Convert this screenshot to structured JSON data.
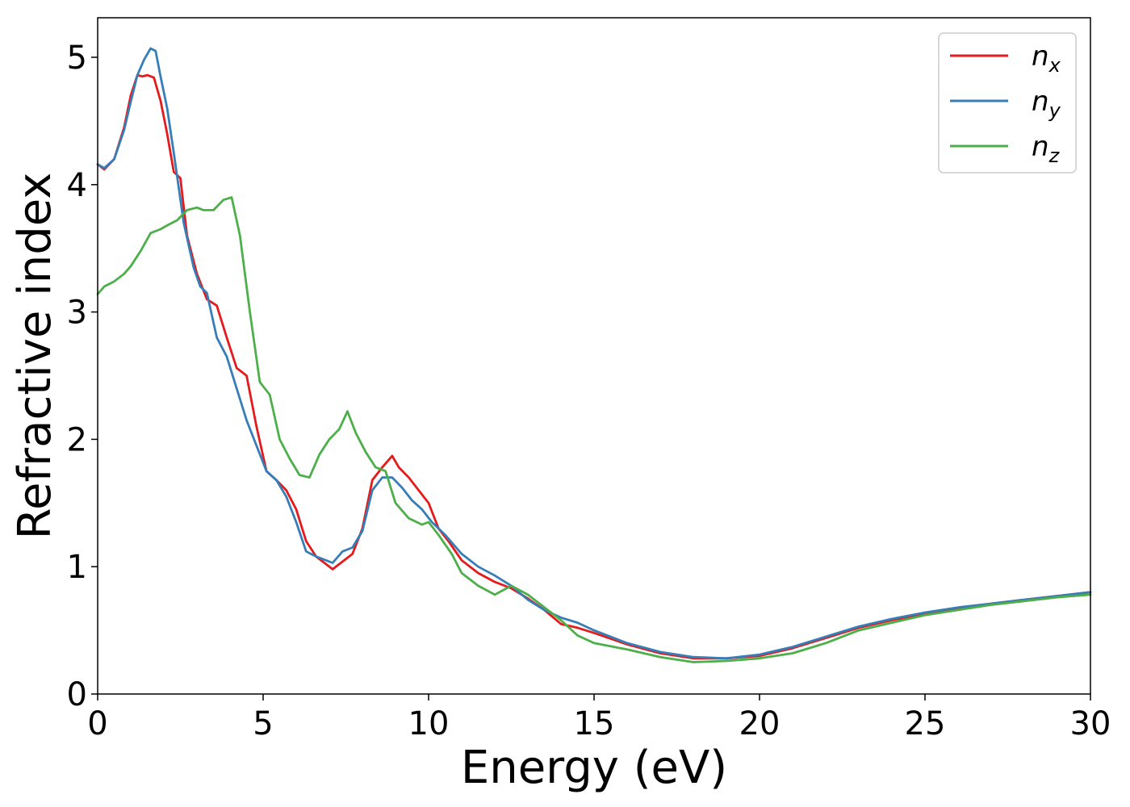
{
  "chart_data": {
    "type": "line",
    "title": "",
    "xlabel": "Energy (eV)",
    "ylabel": "Refractive index",
    "xlim": [
      0,
      30
    ],
    "ylim": [
      0,
      5.3
    ],
    "xticks": [
      0,
      5,
      10,
      15,
      20,
      25,
      30
    ],
    "yticks": [
      0,
      1,
      2,
      3,
      4,
      5
    ],
    "grid": false,
    "legend_position": "top-right",
    "series": [
      {
        "name": "n_x",
        "symbol": "n",
        "subscript": "x",
        "color": "#e41a1c",
        "x": [
          0,
          0.2,
          0.5,
          0.8,
          1.0,
          1.2,
          1.35,
          1.5,
          1.7,
          1.9,
          2.1,
          2.3,
          2.5,
          2.7,
          3.0,
          3.3,
          3.6,
          3.9,
          4.2,
          4.5,
          4.8,
          5.1,
          5.4,
          5.7,
          6.0,
          6.3,
          6.6,
          6.9,
          7.1,
          7.4,
          7.7,
          8.0,
          8.3,
          8.6,
          8.9,
          9.1,
          9.4,
          9.7,
          10.0,
          10.3,
          10.6,
          11.0,
          11.5,
          12.0,
          12.5,
          13.0,
          13.5,
          14.0,
          14.5,
          15.0,
          16.0,
          17.0,
          18.0,
          19.0,
          20.0,
          21.0,
          22.0,
          23.0,
          24.0,
          25.0,
          26.0,
          27.0,
          28.0,
          29.0,
          30.0
        ],
        "y": [
          4.16,
          4.12,
          4.2,
          4.45,
          4.7,
          4.86,
          4.85,
          4.86,
          4.84,
          4.66,
          4.4,
          4.1,
          4.05,
          3.6,
          3.3,
          3.1,
          3.05,
          2.8,
          2.56,
          2.5,
          2.1,
          1.75,
          1.68,
          1.6,
          1.45,
          1.2,
          1.08,
          1.02,
          0.98,
          1.04,
          1.1,
          1.3,
          1.68,
          1.78,
          1.87,
          1.78,
          1.7,
          1.6,
          1.5,
          1.3,
          1.2,
          1.05,
          0.95,
          0.88,
          0.83,
          0.75,
          0.66,
          0.55,
          0.52,
          0.48,
          0.39,
          0.32,
          0.28,
          0.28,
          0.3,
          0.36,
          0.44,
          0.52,
          0.58,
          0.63,
          0.67,
          0.71,
          0.74,
          0.77,
          0.8
        ]
      },
      {
        "name": "n_y",
        "symbol": "n",
        "subscript": "y",
        "color": "#377eb8",
        "x": [
          0,
          0.2,
          0.5,
          0.8,
          1.0,
          1.2,
          1.4,
          1.6,
          1.75,
          1.9,
          2.1,
          2.3,
          2.6,
          2.9,
          3.1,
          3.3,
          3.6,
          3.9,
          4.2,
          4.5,
          4.8,
          5.1,
          5.4,
          5.7,
          6.0,
          6.3,
          6.6,
          6.9,
          7.1,
          7.4,
          7.7,
          8.0,
          8.3,
          8.6,
          8.9,
          9.2,
          9.5,
          9.8,
          10.1,
          10.5,
          11.0,
          11.5,
          12.0,
          12.5,
          13.0,
          13.5,
          14.0,
          14.5,
          15.0,
          16.0,
          17.0,
          18.0,
          19.0,
          20.0,
          21.0,
          22.0,
          23.0,
          24.0,
          25.0,
          26.0,
          27.0,
          28.0,
          29.0,
          30.0
        ],
        "y": [
          4.16,
          4.13,
          4.2,
          4.43,
          4.65,
          4.86,
          4.98,
          5.07,
          5.05,
          4.85,
          4.6,
          4.25,
          3.7,
          3.35,
          3.2,
          3.15,
          2.8,
          2.65,
          2.4,
          2.15,
          1.95,
          1.75,
          1.68,
          1.55,
          1.35,
          1.12,
          1.08,
          1.05,
          1.03,
          1.12,
          1.15,
          1.28,
          1.6,
          1.7,
          1.7,
          1.62,
          1.52,
          1.45,
          1.35,
          1.25,
          1.1,
          1.0,
          0.93,
          0.85,
          0.74,
          0.66,
          0.6,
          0.56,
          0.5,
          0.4,
          0.33,
          0.29,
          0.28,
          0.31,
          0.37,
          0.45,
          0.53,
          0.59,
          0.64,
          0.68,
          0.71,
          0.74,
          0.77,
          0.8
        ]
      },
      {
        "name": "n_z",
        "symbol": "n",
        "subscript": "z",
        "color": "#4daf4a",
        "x": [
          0,
          0.2,
          0.5,
          0.8,
          1.0,
          1.3,
          1.6,
          1.9,
          2.1,
          2.4,
          2.7,
          3.0,
          3.2,
          3.5,
          3.8,
          4.05,
          4.3,
          4.6,
          4.9,
          5.2,
          5.5,
          5.8,
          6.1,
          6.4,
          6.7,
          7.0,
          7.3,
          7.55,
          7.8,
          8.1,
          8.4,
          8.7,
          9.0,
          9.4,
          9.8,
          10.0,
          10.3,
          10.7,
          11.0,
          11.5,
          12.0,
          12.5,
          13.0,
          13.5,
          14.0,
          14.5,
          15.0,
          16.0,
          17.0,
          18.0,
          19.0,
          20.0,
          21.0,
          22.0,
          23.0,
          24.0,
          25.0,
          26.0,
          27.0,
          28.0,
          29.0,
          30.0
        ],
        "y": [
          3.14,
          3.2,
          3.24,
          3.3,
          3.36,
          3.48,
          3.62,
          3.65,
          3.68,
          3.72,
          3.8,
          3.82,
          3.8,
          3.8,
          3.88,
          3.9,
          3.6,
          3.0,
          2.45,
          2.35,
          2.0,
          1.85,
          1.72,
          1.7,
          1.88,
          2.0,
          2.08,
          2.22,
          2.05,
          1.9,
          1.78,
          1.75,
          1.5,
          1.38,
          1.33,
          1.35,
          1.25,
          1.1,
          0.95,
          0.85,
          0.78,
          0.85,
          0.78,
          0.68,
          0.58,
          0.46,
          0.4,
          0.35,
          0.29,
          0.25,
          0.26,
          0.28,
          0.32,
          0.4,
          0.5,
          0.56,
          0.62,
          0.66,
          0.7,
          0.73,
          0.76,
          0.78
        ]
      }
    ]
  }
}
